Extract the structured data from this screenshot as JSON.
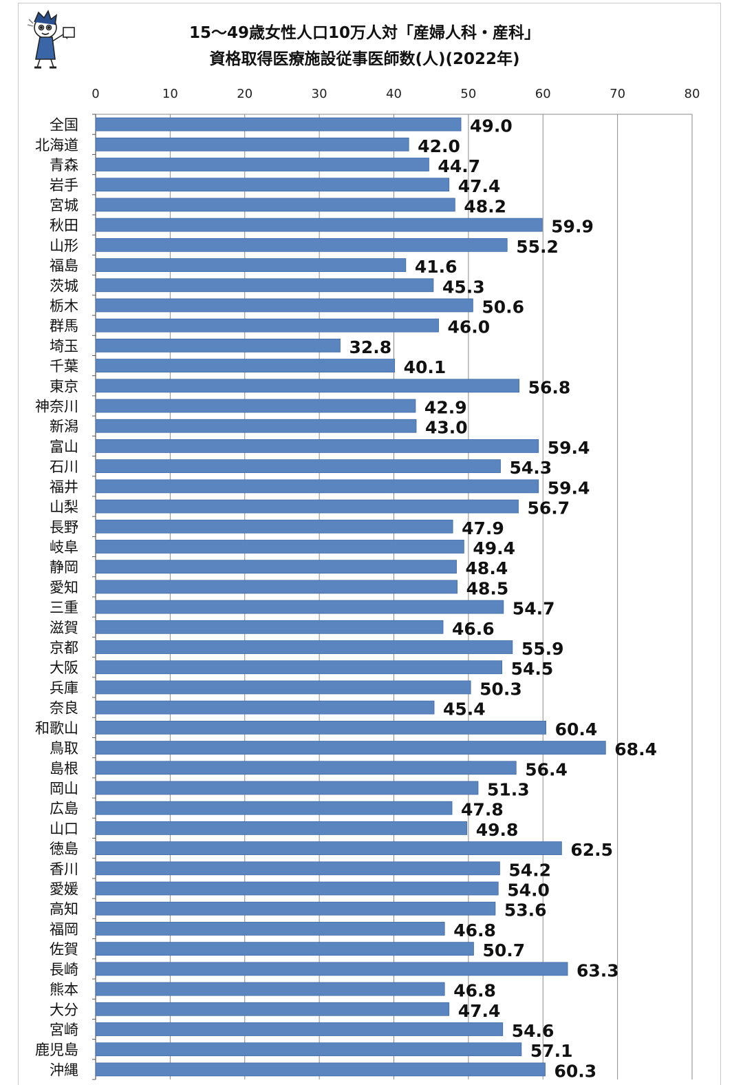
{
  "chart_data": {
    "type": "bar",
    "orientation": "horizontal",
    "title_line1": "15～49歳女性人口10万人対「産婦人科・産科」",
    "title_line2": "資格取得医療施設従事医師数(人)(2022年)",
    "xlim": [
      0,
      80
    ],
    "x_ticks": [
      "0",
      "10",
      "20",
      "30",
      "40",
      "50",
      "60",
      "70",
      "80"
    ],
    "x_tick_values": [
      0,
      10,
      20,
      30,
      40,
      50,
      60,
      70,
      80
    ],
    "grid": true,
    "bar_color": "#5b85bf",
    "bar_edge_color": "#3e6aa8",
    "categories": [
      "全国",
      "北海道",
      "青森",
      "岩手",
      "宮城",
      "秋田",
      "山形",
      "福島",
      "茨城",
      "栃木",
      "群馬",
      "埼玉",
      "千葉",
      "東京",
      "神奈川",
      "新潟",
      "富山",
      "石川",
      "福井",
      "山梨",
      "長野",
      "岐阜",
      "静岡",
      "愛知",
      "三重",
      "滋賀",
      "京都",
      "大阪",
      "兵庫",
      "奈良",
      "和歌山",
      "鳥取",
      "島根",
      "岡山",
      "広島",
      "山口",
      "徳島",
      "香川",
      "愛媛",
      "高知",
      "福岡",
      "佐賀",
      "長崎",
      "熊本",
      "大分",
      "宮崎",
      "鹿児島",
      "沖縄"
    ],
    "values": [
      49.0,
      42.0,
      44.7,
      47.4,
      48.2,
      59.9,
      55.2,
      41.6,
      45.3,
      50.6,
      46.0,
      32.8,
      40.1,
      56.8,
      42.9,
      43.0,
      59.4,
      54.3,
      59.4,
      56.7,
      47.9,
      49.4,
      48.4,
      48.5,
      54.7,
      46.6,
      55.9,
      54.5,
      50.3,
      45.4,
      60.4,
      68.4,
      56.4,
      51.3,
      47.8,
      49.8,
      62.5,
      54.2,
      54.0,
      53.6,
      46.8,
      50.7,
      63.3,
      46.8,
      47.4,
      54.6,
      57.1,
      60.3
    ]
  }
}
